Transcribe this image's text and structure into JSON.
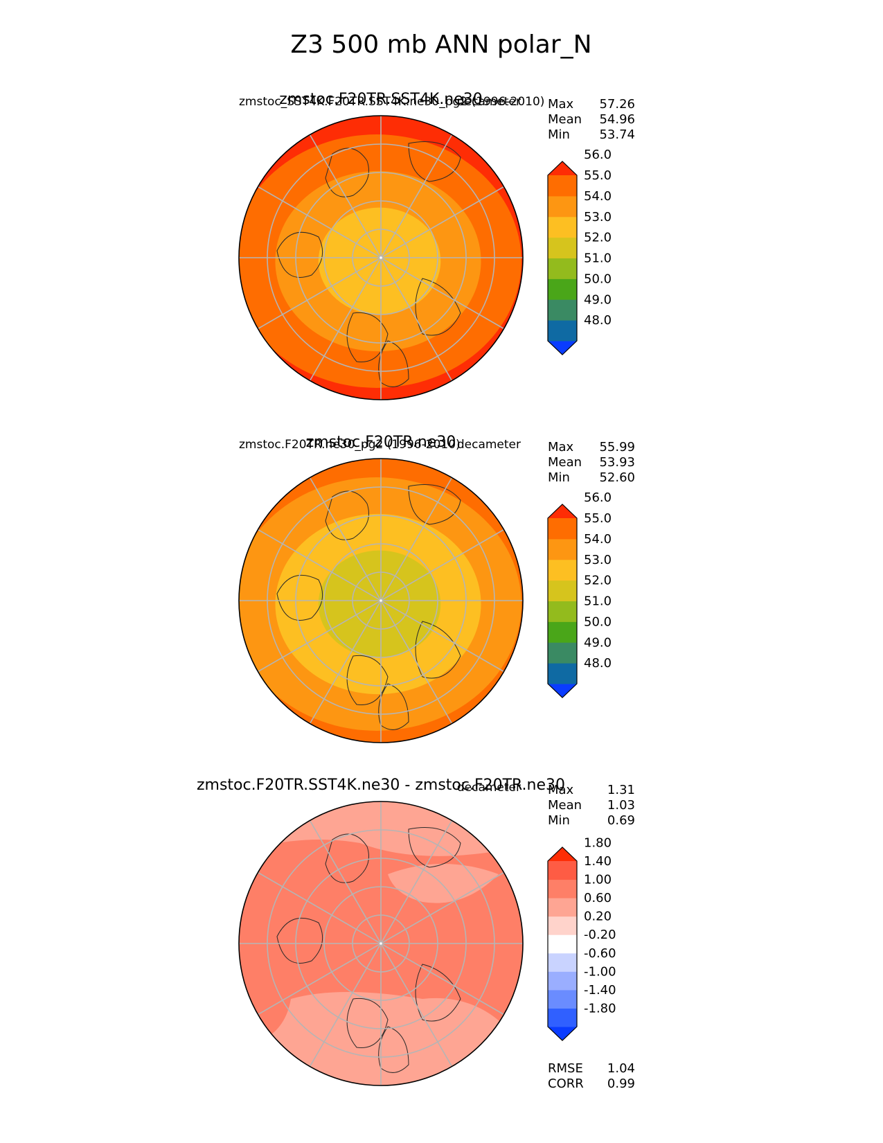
{
  "figure": {
    "title": "Z3 500 mb ANN polar_N"
  },
  "chart_data": [
    {
      "type": "heatmap",
      "projection": "north polar stereographic",
      "title_main": "zmstoc.F20TR.SST4K.ne30",
      "title_left": "zmstoc_SST4K.F20TR.SST4K.ne30_pg2 (1996-2010)",
      "title_right": "decameter",
      "stats": [
        {
          "label": "Max",
          "value": "57.26"
        },
        {
          "label": "Mean",
          "value": "54.96"
        },
        {
          "label": "Min",
          "value": "53.74"
        }
      ],
      "levels": [
        "48.0",
        "49.0",
        "50.0",
        "51.0",
        "52.0",
        "53.0",
        "54.0",
        "55.0",
        "56.0"
      ],
      "colors": [
        "#0a3cff",
        "#0f6aa3",
        "#3a8a63",
        "#4aa619",
        "#93bb1d",
        "#d6c41d",
        "#fdbf22",
        "#fd9612",
        "#fe6d01",
        "#fe2d05"
      ],
      "field_bands": [
        {
          "level": "56.0+",
          "color": "#fe2d05"
        },
        {
          "level": "55.0",
          "color": "#fe6d01"
        },
        {
          "level": "54.0",
          "color": "#fd9612"
        },
        {
          "level": "53.0",
          "color": "#fdbf22"
        }
      ]
    },
    {
      "type": "heatmap",
      "projection": "north polar stereographic",
      "title_main": "zmstoc.F20TR.ne30",
      "title_left": "zmstoc.F20TR.ne30_pg2 (1996-2010)",
      "title_right": "decameter",
      "stats": [
        {
          "label": "Max",
          "value": "55.99"
        },
        {
          "label": "Mean",
          "value": "53.93"
        },
        {
          "label": "Min",
          "value": "52.60"
        }
      ],
      "levels": [
        "48.0",
        "49.0",
        "50.0",
        "51.0",
        "52.0",
        "53.0",
        "54.0",
        "55.0",
        "56.0"
      ],
      "colors": [
        "#0a3cff",
        "#0f6aa3",
        "#3a8a63",
        "#4aa619",
        "#93bb1d",
        "#d6c41d",
        "#fdbf22",
        "#fd9612",
        "#fe6d01",
        "#fe2d05"
      ],
      "field_bands": [
        {
          "level": "55.0",
          "color": "#fe6d01"
        },
        {
          "level": "54.0",
          "color": "#fd9612"
        },
        {
          "level": "53.0",
          "color": "#fdbf22"
        },
        {
          "level": "52.0",
          "color": "#d6c41d"
        }
      ]
    },
    {
      "type": "heatmap",
      "projection": "north polar stereographic",
      "title_main": "zmstoc.F20TR.SST4K.ne30 - zmstoc.F20TR.ne30",
      "title_left": "",
      "title_right": "decameter",
      "stats": [
        {
          "label": "Max",
          "value": "1.31"
        },
        {
          "label": "Mean",
          "value": "1.03"
        },
        {
          "label": "Min",
          "value": "0.69"
        }
      ],
      "levels": [
        "-1.80",
        "-1.40",
        "-1.00",
        "-0.60",
        "-0.20",
        "0.20",
        "0.60",
        "1.00",
        "1.40",
        "1.80"
      ],
      "colors": [
        "#0a3cff",
        "#3060ff",
        "#6a8cff",
        "#9aaeff",
        "#c9d3ff",
        "#ffffff",
        "#ffd3cb",
        "#fea593",
        "#fe7f67",
        "#fe5c44",
        "#fe2d05"
      ],
      "field_bands": [
        {
          "level": "1.00",
          "color": "#fe7f67"
        },
        {
          "level": "0.60",
          "color": "#fea593"
        }
      ],
      "extra_stats": [
        {
          "label": "RMSE",
          "value": "1.04"
        },
        {
          "label": "CORR",
          "value": "0.99"
        }
      ]
    }
  ]
}
